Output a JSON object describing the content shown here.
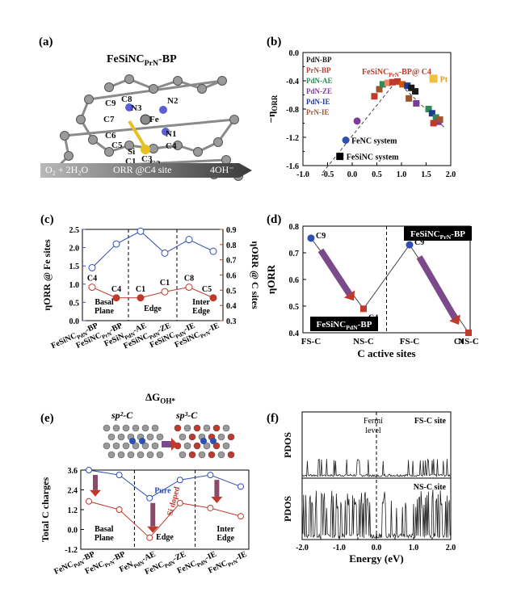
{
  "panel_a": {
    "label": "(a)",
    "title": "FeSiNC",
    "title_sub": "PrN",
    "title_suffix": "-BP",
    "atoms": [
      "C9",
      "C8",
      "N3",
      "N2",
      "Fe",
      "C7",
      "N1",
      "C6",
      "C5",
      "Si",
      "C1",
      "C4",
      "C3",
      "C2"
    ],
    "arrow": {
      "left": "O₂ + 2H₂O",
      "middle": "ORR @C4 site",
      "right": "4OH⁻"
    }
  },
  "panel_b": {
    "label": "(b)",
    "legend": [
      "PdN-BP",
      "PrN-BP",
      "PdN-AE",
      "PdN-ZE",
      "PdN-IE",
      "PrN-IE"
    ],
    "legend_colors": [
      "#1a1a1a",
      "#c0392b",
      "#2e8b57",
      "#7d3c98",
      "#1f3a93",
      "#a0522d"
    ],
    "annotation_main": "FeSiNC",
    "annotation_sub": "PrN",
    "annotation_suffix": "-BP@ C4",
    "pt_label": "Pt",
    "fenc_label": "FeNC system",
    "fesinc_label": "FeSiNC system",
    "ylabel_prefix": "−η",
    "ylabel_sub": "ORR",
    "x_ticks": [
      "-1.0",
      "-0.5",
      "0.0",
      "0.5",
      "1.0",
      "1.5",
      "2.0"
    ],
    "y_ticks": [
      "0.0",
      "-0.4",
      "-0.8",
      "-1.2",
      "-1.6"
    ],
    "y_ticks_mid": [
      "-0.2",
      "-0.6",
      "-1.0",
      "-1.4"
    ]
  },
  "panel_c": {
    "label": "(c)",
    "ylabel_left": "ηORR @ Fe sites",
    "ylabel_right": "ηORR @ C sites",
    "left_ticks": [
      "0.0",
      "0.5",
      "1.0",
      "1.5",
      "2.0",
      "2.5"
    ],
    "right_ticks": [
      "0.3",
      "0.4",
      "0.5",
      "0.6",
      "0.7",
      "0.8",
      "0.9"
    ],
    "categories": [
      "FeSiNCPdN-BP",
      "FeSiNCPrN-BP",
      "FeSiNPdN-AE",
      "FeSiNCPdN-ZE",
      "FeSiNCPdN-IE",
      "FeSiNCPrN-IE"
    ],
    "cat_main": [
      "FeSiNC",
      "FeSiNC",
      "FeSiN",
      "FeSiNC",
      "FeSiNC",
      "FeSiNC"
    ],
    "cat_sub": [
      "PdN",
      "PrN",
      "PdN",
      "PdN",
      "PdN",
      "PrN"
    ],
    "cat_suffix": [
      "-BP",
      "-BP",
      "-AE",
      "-ZE",
      "-IE",
      "-IE"
    ],
    "site_labels": [
      "C4",
      "C4",
      "C1",
      "C1",
      "C8",
      "C5"
    ],
    "regions": [
      "Basal\nPlane",
      "Edge",
      "Inter\nEdge"
    ],
    "region_lines": [
      [
        "Basal",
        "Plane"
      ],
      [
        "Edge"
      ],
      [
        "Inter",
        "Edge"
      ]
    ]
  },
  "panel_d": {
    "label": "(d)",
    "ylabel": "ηORR",
    "xlabel": "C active sites",
    "x_ticks": [
      "FS-C",
      "NS-C",
      "FS-C",
      "NS-C"
    ],
    "y_ticks": [
      "0.4",
      "0.5",
      "0.6",
      "0.7",
      "0.8"
    ],
    "points": [
      "C9",
      "C4",
      "C9",
      "C4"
    ],
    "box_left": {
      "main": "FeSiNC",
      "sub": "PdN",
      "suffix": "-BP"
    },
    "box_right": {
      "main": "FeSiNC",
      "sub": "PrN",
      "suffix": "-BP"
    }
  },
  "panel_e": {
    "label": "(e)",
    "heading": "ΔG",
    "heading_sub": "OH*",
    "sp2": "sp²-C",
    "sp3": "sp³-C",
    "ylabel": "Total C charges",
    "y_ticks": [
      "3.6",
      "2.4",
      "1.2",
      "0.0",
      "-1.2"
    ],
    "pure": "Pure",
    "si_doped": "Si doped",
    "regions": [
      [
        "Basal",
        "Plane"
      ],
      [
        "Edge"
      ],
      [
        "Inter",
        "Edge"
      ]
    ],
    "cat_main": [
      "FeNC",
      "FeNC",
      "FeN",
      "FeNC",
      "FeNC",
      "FeNC"
    ],
    "cat_sub": [
      "PdN",
      "PrN",
      "PdN",
      "PdN",
      "PdN",
      "PrN"
    ],
    "cat_suffix": [
      "-BP",
      "-BP",
      "-AE",
      "-ZE",
      "-IE",
      "-IE"
    ]
  },
  "panel_f": {
    "label": "(f)",
    "fermi": [
      "Fermi",
      "level"
    ],
    "top_site": "FS-C site",
    "bottom_site": "NS-C site",
    "ylabel": "PDOS",
    "xlabel": "Energy (eV)",
    "x_ticks": [
      "-2.0",
      "-1.5",
      "-1.0",
      "-0.5",
      "0.0",
      "0.5",
      "1.0",
      "1.5",
      "2.0"
    ]
  },
  "chart_data": [
    {
      "type": "scatter",
      "id": "b",
      "xlim": [
        -1.0,
        2.0
      ],
      "ylim": [
        -1.6,
        0.0
      ],
      "points": [
        {
          "x": 0.45,
          "y": -0.62,
          "color": "#c0392b"
        },
        {
          "x": 0.55,
          "y": -0.52,
          "color": "#a0522d"
        },
        {
          "x": 0.62,
          "y": -0.45,
          "color": "#2e8b57"
        },
        {
          "x": 0.72,
          "y": -0.43,
          "color": "#e08a6a"
        },
        {
          "x": 0.82,
          "y": -0.42,
          "color": "#c0392b"
        },
        {
          "x": 0.92,
          "y": -0.41,
          "color": "#c0392b"
        },
        {
          "x": 1.02,
          "y": -0.45,
          "color": "#d35400"
        },
        {
          "x": 1.12,
          "y": -0.47,
          "color": "#1f3a93"
        },
        {
          "x": 1.2,
          "y": -0.5,
          "color": "#1a1a1a"
        },
        {
          "x": 1.28,
          "y": -0.55,
          "color": "#1a1a1a"
        },
        {
          "x": 1.15,
          "y": -0.65,
          "color": "#a0522d"
        },
        {
          "x": 1.3,
          "y": -0.72,
          "color": "#7d3c98"
        },
        {
          "x": 1.55,
          "y": -0.8,
          "color": "#2e8b57"
        },
        {
          "x": 1.62,
          "y": -0.86,
          "color": "#1f3a93"
        },
        {
          "x": 1.7,
          "y": -0.92,
          "color": "#2e8b57"
        },
        {
          "x": 1.75,
          "y": -0.98,
          "color": "#7d3c98"
        },
        {
          "x": 1.65,
          "y": -1.0,
          "color": "#c0392b"
        },
        {
          "x": 1.78,
          "y": -0.95,
          "color": "#a0522d"
        }
      ],
      "pt": {
        "x": 1.65,
        "y": -0.37
      },
      "fenc_points": [
        {
          "x": 0.1,
          "y": -0.97
        },
        {
          "x": -0.13,
          "y": -1.24
        }
      ],
      "fesinc_point": {
        "x": -0.25,
        "y": -1.47
      },
      "trend": [
        [
          -0.6,
          -1.7
        ],
        [
          0.9,
          -0.4
        ],
        [
          1.9,
          -1.08
        ]
      ]
    },
    {
      "type": "line",
      "id": "c",
      "categories": [
        "FeSiNCPdN-BP",
        "FeSiNCPrN-BP",
        "FeSiNPdN-AE",
        "FeSiNCPdN-ZE",
        "FeSiNCPdN-IE",
        "FeSiNCPrN-IE"
      ],
      "series": [
        {
          "name": "",
          "axis": "left",
          "values": [
            1.45,
            2.1,
            2.45,
            1.85,
            2.22,
            1.9
          ],
          "color": "#2f4fb3"
        },
        {
          "name": "",
          "axis": "right",
          "values": [
            0.52,
            0.45,
            0.45,
            0.49,
            0.52,
            0.45
          ],
          "color": "#c0392b"
        }
      ],
      "ylim_left": [
        0.0,
        2.5
      ],
      "ylim_right": [
        0.3,
        0.9
      ]
    },
    {
      "type": "line",
      "id": "d",
      "categories": [
        "FS-C",
        "NS-C",
        "FS-C",
        "NS-C"
      ],
      "values": [
        0.755,
        0.49,
        0.73,
        0.4
      ],
      "ylim": [
        0.4,
        0.8
      ]
    },
    {
      "type": "line",
      "id": "e",
      "categories": [
        "FeNCPdN-BP",
        "FeNCPrN-BP",
        "FeNPdN-AE",
        "FeNCPdN-ZE",
        "FeNCPdN-IE",
        "FeNCPrN-IE"
      ],
      "series": [
        {
          "name": "Pure",
          "values": [
            3.6,
            3.3,
            1.9,
            3.0,
            3.3,
            2.6
          ],
          "color": "#2f4fb3"
        },
        {
          "name": "Si doped",
          "values": [
            1.7,
            1.2,
            -0.5,
            1.6,
            1.3,
            0.8
          ],
          "color": "#c0392b"
        }
      ],
      "ylim": [
        -1.2,
        3.6
      ]
    }
  ]
}
